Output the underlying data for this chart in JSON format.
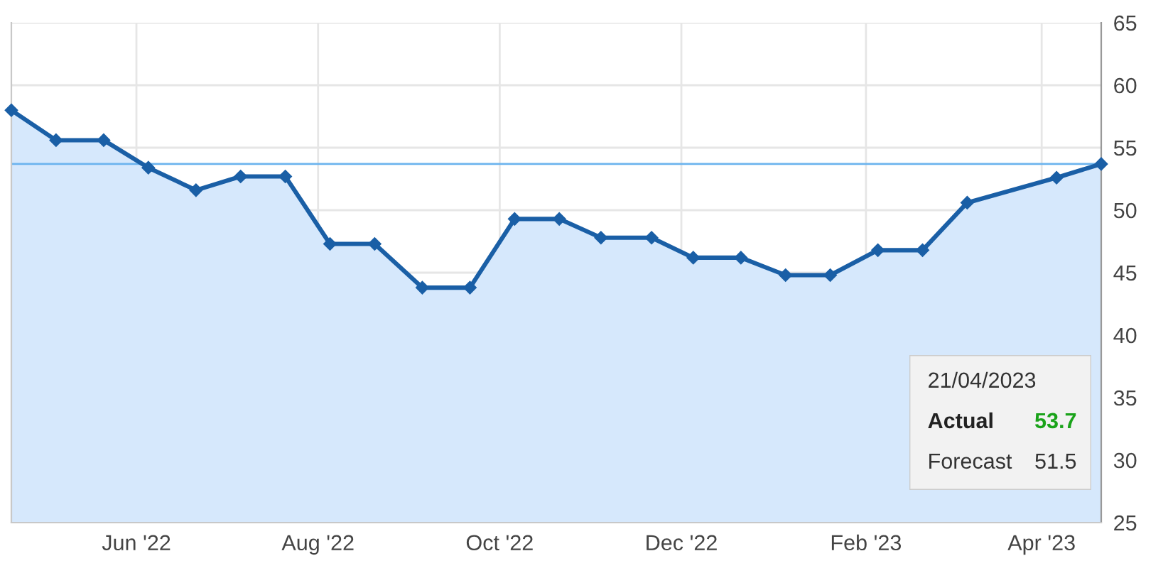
{
  "chart_data": {
    "type": "area",
    "x": [
      "2022-04-20",
      "2022-05-05",
      "2022-05-21",
      "2022-06-05",
      "2022-06-21",
      "2022-07-06",
      "2022-07-21",
      "2022-08-05",
      "2022-08-20",
      "2022-09-05",
      "2022-09-21",
      "2022-10-06",
      "2022-10-21",
      "2022-11-04",
      "2022-11-21",
      "2022-12-05",
      "2022-12-21",
      "2023-01-05",
      "2023-01-20",
      "2023-02-05",
      "2023-02-20",
      "2023-03-07",
      "2023-04-06",
      "2023-04-21"
    ],
    "series": [
      {
        "color": "#1a5fa6",
        "values": [
          58.0,
          55.6,
          55.6,
          53.4,
          51.6,
          52.7,
          52.7,
          47.3,
          47.3,
          43.8,
          43.8,
          49.3,
          49.3,
          47.8,
          47.8,
          46.2,
          46.2,
          44.8,
          44.8,
          46.8,
          46.8,
          50.6,
          52.6,
          53.7
        ]
      }
    ],
    "xlim": [
      "2022-04-20",
      "2023-04-21"
    ],
    "xticks": [
      {
        "value": "2022-06-01",
        "label": "Jun '22"
      },
      {
        "value": "2022-08-01",
        "label": "Aug '22"
      },
      {
        "value": "2022-10-01",
        "label": "Oct '22"
      },
      {
        "value": "2022-12-01",
        "label": "Dec '22"
      },
      {
        "value": "2023-02-01",
        "label": "Feb '23"
      },
      {
        "value": "2023-04-01",
        "label": "Apr '23"
      }
    ],
    "ylim": [
      25,
      65
    ],
    "yticks": [
      25,
      30,
      35,
      40,
      45,
      50,
      55,
      60,
      65
    ],
    "ref_lines": [
      {
        "axis": "y",
        "value": 53.7,
        "color": "#6cb4ee"
      }
    ],
    "annotations": [
      "21/04/2023",
      "Actual",
      "53.7",
      "Forecast",
      "51.5"
    ],
    "grid": true,
    "marker": "diamond",
    "line_style": "solid"
  }
}
